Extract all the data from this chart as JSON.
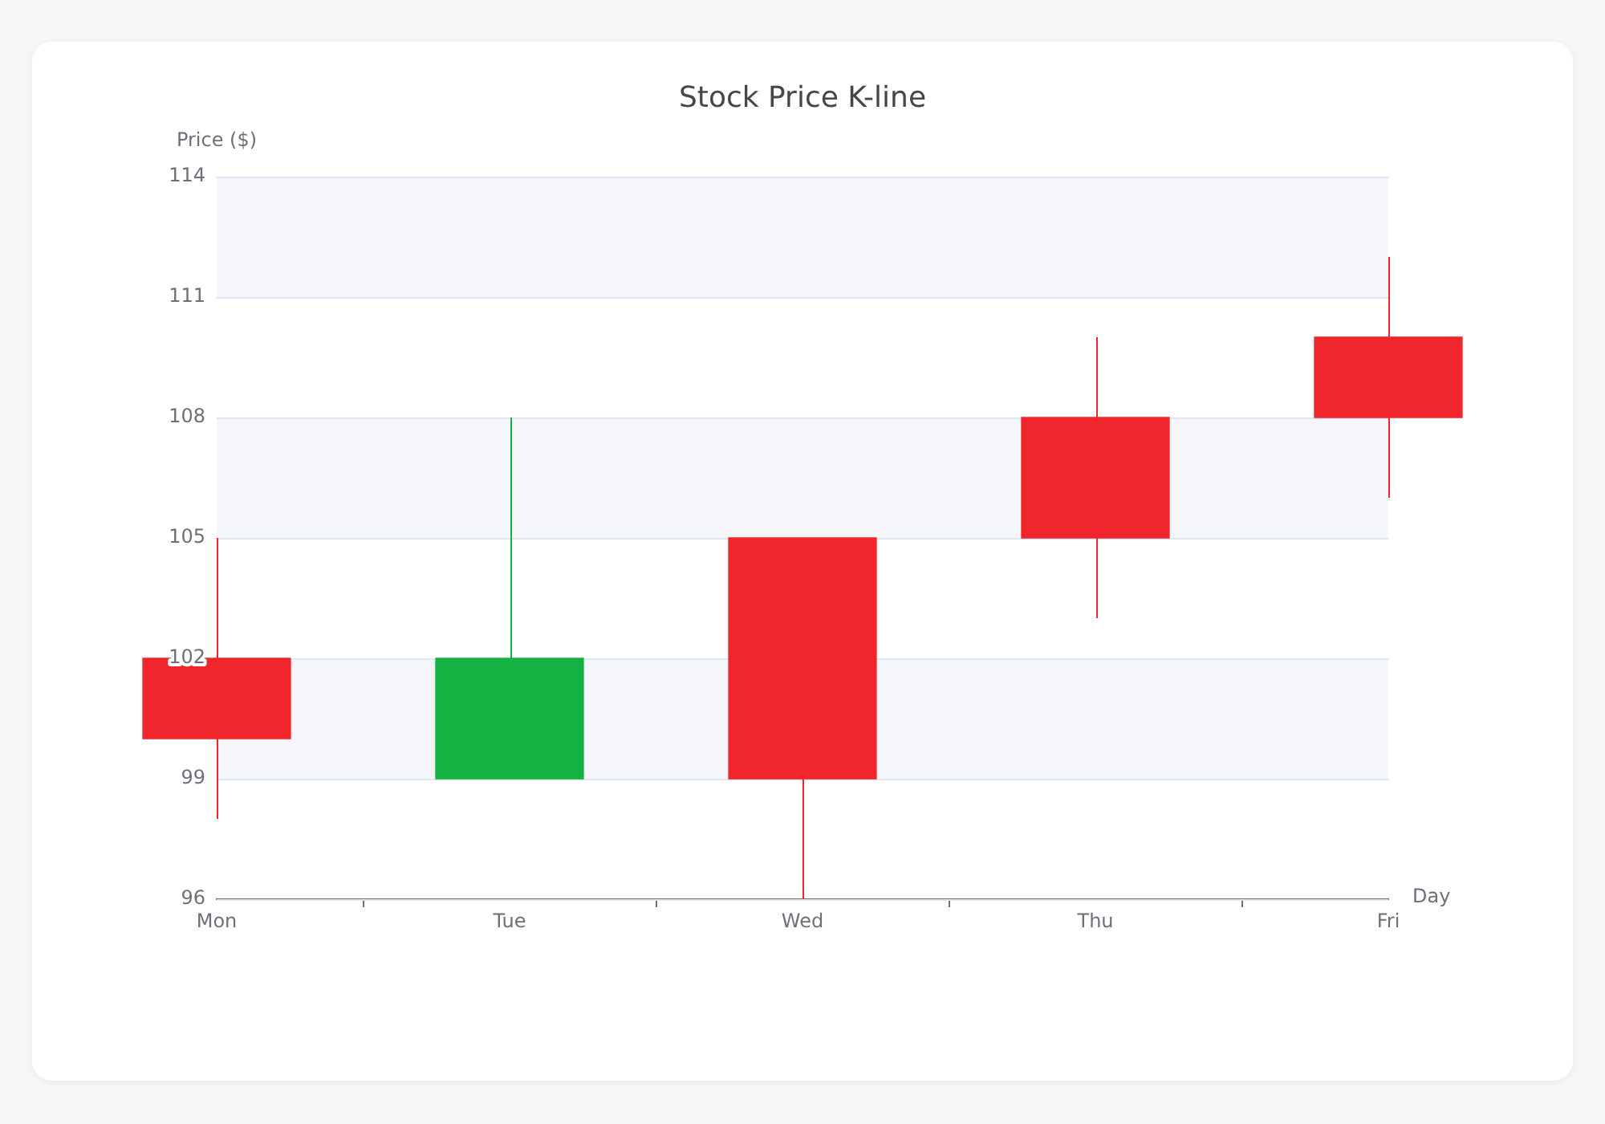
{
  "chart_data": {
    "type": "candlestick",
    "title": "Stock Price K-line",
    "xlabel": "Day",
    "ylabel": "Price ($)",
    "categories": [
      "Mon",
      "Tue",
      "Wed",
      "Thu",
      "Fri"
    ],
    "ohlc": [
      [
        100,
        105,
        98,
        102
      ],
      [
        102,
        108,
        99,
        99
      ],
      [
        99,
        105,
        96,
        105
      ],
      [
        105,
        110,
        103,
        108
      ],
      [
        108,
        112,
        106,
        110
      ]
    ],
    "colors": [
      "#f0262c",
      "#14b143",
      "#f0262c",
      "#f0262c",
      "#f0262c"
    ],
    "ylim": [
      96,
      114
    ],
    "yticks": [
      96,
      99,
      102,
      105,
      108,
      111,
      114
    ],
    "grid": "y",
    "legend": false
  }
}
